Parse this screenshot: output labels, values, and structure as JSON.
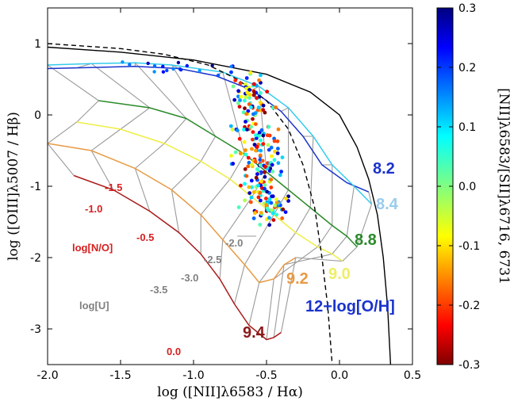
{
  "chart_data": {
    "type": "scatter",
    "xlabel": "log ([NII]λ6583 / Hα)",
    "ylabel": "log ([OIII]λ5007 / Hβ)",
    "colorbar_label": "[NII]λ6583/[SII]λ6716, 6731",
    "xlim": [
      -2.0,
      0.5
    ],
    "ylim": [
      -3.5,
      1.5
    ],
    "x_ticks": [
      "-2.0",
      "-1.5",
      "-1.0",
      "-0.5",
      "0.0",
      "0.5"
    ],
    "y_ticks": [
      "1",
      "0",
      "-1",
      "-2",
      "-3"
    ],
    "colorbar_ticks": [
      "0.3",
      "0.2",
      "0.1",
      "0.0",
      "-0.1",
      "-0.2",
      "-0.3"
    ],
    "colorbar_range": [
      -0.3,
      0.3
    ],
    "colormap": "jet",
    "curves": [
      {
        "style": "solid-black",
        "points": [
          [
            -2.0,
            0.95
          ],
          [
            -1.5,
            0.88
          ],
          [
            -1.0,
            0.77
          ],
          [
            -0.5,
            0.57
          ],
          [
            -0.2,
            0.32
          ],
          [
            0.0,
            0.0
          ],
          [
            0.12,
            -0.45
          ],
          [
            0.2,
            -0.9
          ],
          [
            0.26,
            -1.4
          ],
          [
            0.3,
            -2.0
          ],
          [
            0.33,
            -2.7
          ],
          [
            0.35,
            -3.5
          ]
        ]
      },
      {
        "style": "dashed-black",
        "points": [
          [
            -2.0,
            1.0
          ],
          [
            -1.5,
            0.93
          ],
          [
            -1.2,
            0.85
          ],
          [
            -0.9,
            0.7
          ],
          [
            -0.7,
            0.5
          ],
          [
            -0.5,
            0.2
          ],
          [
            -0.35,
            -0.2
          ],
          [
            -0.25,
            -0.7
          ],
          [
            -0.17,
            -1.3
          ],
          [
            -0.12,
            -2.0
          ],
          [
            -0.08,
            -2.7
          ],
          [
            -0.05,
            -3.5
          ]
        ]
      }
    ],
    "metallicity_tracks": [
      {
        "label": "8.2",
        "color": "#1a33cc",
        "points": [
          [
            -2.0,
            0.65
          ],
          [
            -1.8,
            0.66
          ],
          [
            -1.4,
            0.68
          ],
          [
            -1.1,
            0.65
          ],
          [
            -0.85,
            0.55
          ],
          [
            -0.6,
            0.35
          ],
          [
            -0.4,
            0.05
          ],
          [
            -0.25,
            -0.3
          ],
          [
            -0.12,
            -0.7
          ],
          [
            0.05,
            -0.95
          ],
          [
            0.2,
            -1.08
          ]
        ]
      },
      {
        "label": "8.4",
        "color": "#33ccee",
        "points": [
          [
            -2.0,
            0.7
          ],
          [
            -1.7,
            0.72
          ],
          [
            -1.4,
            0.73
          ],
          [
            -1.15,
            0.7
          ],
          [
            -0.8,
            0.6
          ],
          [
            -0.55,
            0.4
          ],
          [
            -0.35,
            0.1
          ],
          [
            -0.18,
            -0.3
          ],
          [
            -0.05,
            -0.7
          ],
          [
            0.1,
            -1.0
          ],
          [
            0.22,
            -1.25
          ]
        ]
      },
      {
        "label": "8.8",
        "color": "#2a8a2a",
        "points": [
          [
            -1.65,
            0.2
          ],
          [
            -1.3,
            0.1
          ],
          [
            -1.05,
            -0.05
          ],
          [
            -0.85,
            -0.3
          ],
          [
            -0.65,
            -0.55
          ],
          [
            -0.5,
            -0.8
          ],
          [
            -0.35,
            -1.05
          ],
          [
            -0.2,
            -1.3
          ],
          [
            -0.05,
            -1.55
          ],
          [
            0.05,
            -1.7
          ],
          [
            0.12,
            -1.85
          ]
        ]
      },
      {
        "label": "9.0",
        "color": "#eeee44",
        "points": [
          [
            -1.8,
            -0.1
          ],
          [
            -1.5,
            -0.2
          ],
          [
            -1.2,
            -0.4
          ],
          [
            -0.95,
            -0.65
          ],
          [
            -0.75,
            -0.9
          ],
          [
            -0.6,
            -1.15
          ],
          [
            -0.45,
            -1.4
          ],
          [
            -0.3,
            -1.65
          ],
          [
            -0.15,
            -1.85
          ],
          [
            -0.05,
            -1.95
          ],
          [
            0.02,
            -2.05
          ]
        ]
      },
      {
        "label": "9.2",
        "color": "#e89a44",
        "points": [
          [
            -2.0,
            -0.4
          ],
          [
            -1.7,
            -0.5
          ],
          [
            -1.4,
            -0.75
          ],
          [
            -1.15,
            -1.05
          ],
          [
            -0.95,
            -1.4
          ],
          [
            -0.8,
            -1.75
          ],
          [
            -0.65,
            -2.1
          ],
          [
            -0.55,
            -2.35
          ],
          [
            -0.45,
            -2.3
          ],
          [
            -0.38,
            -2.1
          ],
          [
            -0.3,
            -2.0
          ]
        ]
      },
      {
        "label": "9.4",
        "color": "#aa1a1a",
        "points": [
          [
            -1.82,
            -0.85
          ],
          [
            -1.55,
            -1.05
          ],
          [
            -1.3,
            -1.35
          ],
          [
            -1.1,
            -1.65
          ],
          [
            -0.95,
            -1.95
          ],
          [
            -0.82,
            -2.3
          ],
          [
            -0.72,
            -2.65
          ],
          [
            -0.62,
            -2.95
          ],
          [
            -0.5,
            -3.15
          ],
          [
            -0.45,
            -3.12
          ],
          [
            -0.4,
            -3.05
          ]
        ]
      }
    ],
    "ionization_lines": [
      {
        "label": "-2.0",
        "points": [
          [
            -0.57,
            -1.7
          ],
          [
            -0.7,
            -1.7
          ]
        ]
      }
    ],
    "annotations": {
      "no_title": "log[N/O]",
      "no_values": [
        "-1.5",
        "-1.0",
        "-0.5",
        "0.0"
      ],
      "u_title": "log[U]",
      "u_values": [
        "-2.0",
        "-2.5",
        "-3.0",
        "-3.5"
      ],
      "oh_title": "12+log[O/H]",
      "oh_values": [
        "8.2",
        "8.4",
        "8.8",
        "9.0",
        "9.2",
        "9.4"
      ]
    }
  }
}
